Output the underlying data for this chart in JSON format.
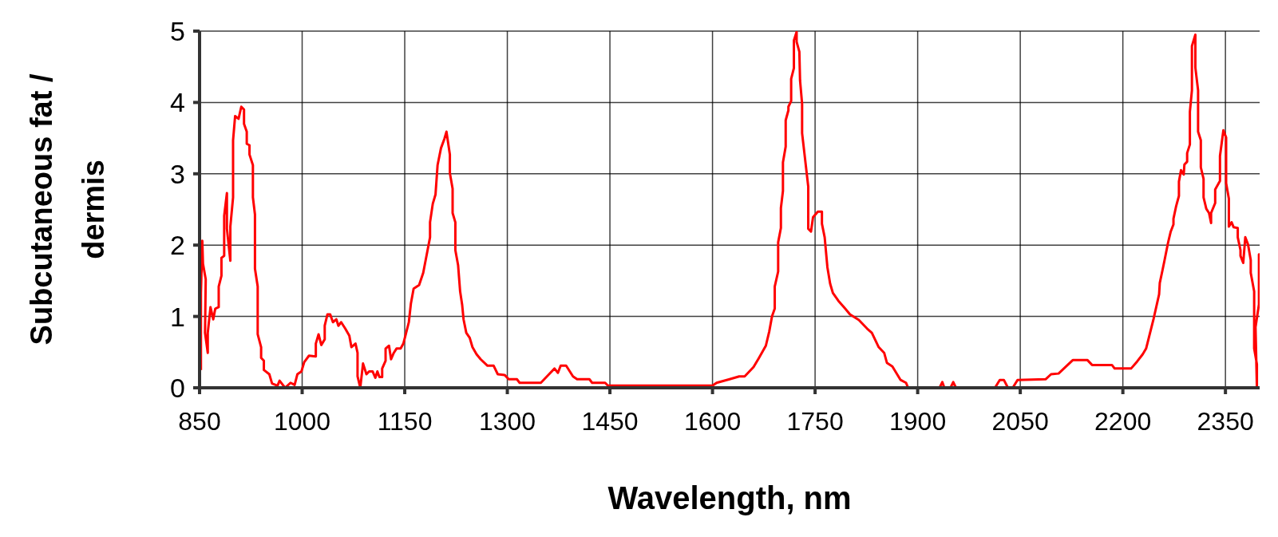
{
  "chart_data": {
    "type": "line",
    "xlabel": "Wavelength, nm",
    "ylabel": "Subcutaneous fat / dermis",
    "xlim": [
      850,
      2400
    ],
    "xticks": [
      850,
      1000,
      1150,
      1300,
      1450,
      1600,
      1750,
      1900,
      2050,
      2200,
      2350
    ],
    "ylim": [
      0,
      5
    ],
    "yticks": [
      0,
      1,
      2,
      3,
      4,
      5
    ],
    "grid": true,
    "legend": false,
    "marker": "none",
    "line_style": "solid",
    "series": [
      {
        "color": "#ff0000",
        "x": [
          852,
          852,
          854,
          855,
          859,
          858,
          862,
          862,
          866,
          870,
          873,
          878,
          878,
          882,
          882,
          886,
          886,
          890,
          890,
          895,
          895,
          899,
          899,
          902,
          907,
          911,
          915,
          915,
          919,
          919,
          923,
          923,
          928,
          928,
          931,
          931,
          935,
          935,
          940,
          940,
          944,
          944,
          952,
          956,
          964,
          967,
          975,
          983,
          989,
          993,
          999,
          1003,
          1010,
          1020,
          1020,
          1024,
          1028,
          1033,
          1033,
          1037,
          1041,
          1045,
          1050,
          1053,
          1057,
          1063,
          1069,
          1072,
          1078,
          1081,
          1081,
          1085,
          1089,
          1094,
          1098,
          1103,
          1107,
          1110,
          1113,
          1117,
          1117,
          1122,
          1122,
          1127,
          1130,
          1134,
          1138,
          1144,
          1148,
          1151,
          1156,
          1159,
          1163,
          1171,
          1177,
          1183,
          1187,
          1187,
          1191,
          1195,
          1198,
          1203,
          1208,
          1211,
          1216,
          1216,
          1220,
          1220,
          1224,
          1224,
          1228,
          1231,
          1234,
          1236,
          1240,
          1245,
          1249,
          1255,
          1261,
          1271,
          1280,
          1286,
          1296,
          1302,
          1314,
          1318,
          1349,
          1361,
          1369,
          1374,
          1378,
          1386,
          1396,
          1402,
          1420,
          1424,
          1443,
          1447,
          1600,
          1606,
          1625,
          1639,
          1647,
          1660,
          1668,
          1678,
          1683,
          1687,
          1691,
          1691,
          1696,
          1696,
          1700,
          1700,
          1703,
          1703,
          1707,
          1707,
          1711,
          1711,
          1715,
          1715,
          1719,
          1719,
          1723,
          1723,
          1727,
          1728,
          1731,
          1731,
          1740,
          1740,
          1744,
          1747,
          1754,
          1760,
          1760,
          1764,
          1768,
          1772,
          1776,
          1784,
          1794,
          1801,
          1814,
          1826,
          1833,
          1843,
          1851,
          1855,
          1863,
          1875,
          1883,
          1886,
          1932,
          1936,
          1939,
          1948,
          1952,
          1956,
          2013,
          2020,
          2026,
          2032,
          2039,
          2046,
          2087,
          2095,
          2106,
          2127,
          2148,
          2155,
          2184,
          2188,
          2212,
          2221,
          2229,
          2234,
          2245,
          2253,
          2254,
          2258,
          2261,
          2266,
          2270,
          2274,
          2274,
          2278,
          2282,
          2282,
          2285,
          2289,
          2290,
          2294,
          2294,
          2298,
          2298,
          2301,
          2301,
          2306,
          2306,
          2310,
          2310,
          2314,
          2314,
          2318,
          2318,
          2322,
          2326,
          2329,
          2329,
          2335,
          2335,
          2342,
          2342,
          2347,
          2351,
          2351,
          2355,
          2355,
          2359,
          2362,
          2368,
          2368,
          2372,
          2372,
          2376,
          2379,
          2383,
          2387,
          2387,
          2392,
          2392,
          2396,
          2396,
          2394,
          2399,
          2399,
          2400,
          2400
        ],
        "values": [
          0.25,
          1.33,
          2.06,
          1.74,
          1.52,
          0.77,
          0.49,
          0.77,
          1.13,
          0.96,
          1.11,
          1.13,
          1.42,
          1.57,
          1.82,
          1.85,
          2.41,
          2.73,
          2.23,
          1.78,
          2.26,
          2.67,
          3.47,
          3.81,
          3.77,
          3.94,
          3.9,
          3.7,
          3.59,
          3.42,
          3.4,
          3.27,
          3.12,
          2.67,
          2.43,
          1.67,
          1.42,
          0.75,
          0.57,
          0.42,
          0.38,
          0.25,
          0.19,
          0.06,
          0.03,
          0.1,
          0,
          0.07,
          0.04,
          0.19,
          0.23,
          0.36,
          0.45,
          0.44,
          0.62,
          0.75,
          0.6,
          0.68,
          0.87,
          1.03,
          1.03,
          0.92,
          0.96,
          0.87,
          0.92,
          0.83,
          0.73,
          0.57,
          0.62,
          0.49,
          0.16,
          0,
          0.34,
          0.19,
          0.23,
          0.23,
          0.14,
          0.23,
          0.15,
          0.15,
          0.27,
          0.38,
          0.55,
          0.59,
          0.4,
          0.49,
          0.55,
          0.55,
          0.62,
          0.73,
          0.92,
          1.18,
          1.39,
          1.44,
          1.61,
          1.91,
          2.11,
          2.32,
          2.58,
          2.71,
          3.12,
          3.36,
          3.49,
          3.59,
          3.27,
          3.01,
          2.79,
          2.45,
          2.32,
          1.93,
          1.72,
          1.35,
          1.16,
          0.96,
          0.77,
          0.7,
          0.57,
          0.47,
          0.4,
          0.31,
          0.31,
          0.19,
          0.18,
          0.12,
          0.12,
          0.07,
          0.07,
          0.19,
          0.27,
          0.21,
          0.31,
          0.31,
          0.16,
          0.12,
          0.12,
          0.07,
          0.07,
          0.03,
          0.03,
          0.07,
          0.12,
          0.16,
          0.16,
          0.29,
          0.42,
          0.59,
          0.79,
          1,
          1.11,
          1.42,
          1.63,
          2.04,
          2.24,
          2.52,
          2.76,
          3.16,
          3.38,
          3.75,
          3.89,
          3.94,
          4.02,
          4.33,
          4.48,
          4.87,
          4.99,
          4.85,
          4.71,
          4.31,
          3.98,
          3.57,
          2.82,
          2.23,
          2.19,
          2.39,
          2.47,
          2.47,
          2.3,
          2.11,
          1.69,
          1.46,
          1.33,
          1.22,
          1.11,
          1.03,
          0.95,
          0.83,
          0.77,
          0.57,
          0.49,
          0.35,
          0.3,
          0.11,
          0.07,
          0,
          0,
          0.08,
          0,
          0,
          0.08,
          0,
          0,
          0.11,
          0.11,
          0,
          0,
          0.11,
          0.12,
          0.19,
          0.2,
          0.39,
          0.39,
          0.32,
          0.32,
          0.27,
          0.27,
          0.37,
          0.47,
          0.55,
          0.97,
          1.31,
          1.47,
          1.65,
          1.79,
          2.03,
          2.19,
          2.29,
          2.37,
          2.55,
          2.69,
          2.89,
          3.05,
          2.99,
          3.13,
          3.17,
          3.29,
          3.41,
          3.87,
          4.17,
          4.79,
          4.95,
          4.49,
          4.17,
          3.59,
          3.47,
          3.09,
          2.93,
          2.67,
          2.51,
          2.45,
          2.31,
          2.45,
          2.59,
          2.78,
          2.9,
          3.25,
          3.61,
          3.51,
          2.87,
          2.65,
          2.26,
          2.32,
          2.25,
          2.24,
          2.11,
          1.93,
          1.85,
          1.75,
          2.11,
          2.01,
          1.79,
          1.61,
          1.35,
          0.55,
          0.33,
          0,
          0.85,
          1.17,
          1.87,
          1.6,
          1.35
        ]
      }
    ]
  }
}
